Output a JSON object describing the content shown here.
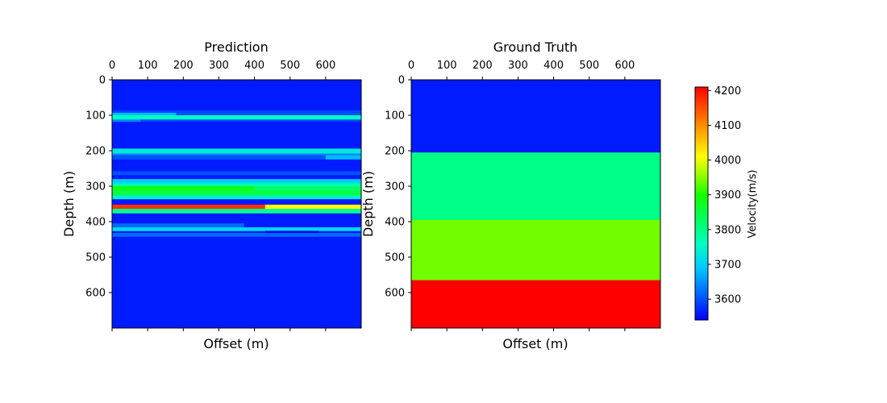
{
  "chart_data": [
    {
      "type": "heatmap",
      "title": "Prediction",
      "xlabel": "Offset (m)",
      "ylabel": "Depth (m)",
      "xlim": [
        0,
        700
      ],
      "ylim": [
        0,
        700
      ],
      "xticks": [
        0,
        100,
        200,
        300,
        400,
        500,
        600
      ],
      "yticks": [
        0,
        100,
        200,
        300,
        400,
        500,
        600
      ],
      "background_velocity": 3560,
      "layers": [
        {
          "depth": [
            86,
            93
          ],
          "x": [
            0,
            700
          ],
          "velocity": 3590
        },
        {
          "depth": [
            93,
            100
          ],
          "x": [
            0,
            180
          ],
          "velocity": 3680
        },
        {
          "depth": [
            93,
            100
          ],
          "x": [
            180,
            700
          ],
          "velocity": 3600
        },
        {
          "depth": [
            100,
            112
          ],
          "x": [
            0,
            700
          ],
          "velocity": 3760
        },
        {
          "depth": [
            112,
            118
          ],
          "x": [
            0,
            80
          ],
          "velocity": 3640
        },
        {
          "depth": [
            112,
            118
          ],
          "x": [
            80,
            700
          ],
          "velocity": 3590
        },
        {
          "depth": [
            194,
            208
          ],
          "x": [
            0,
            700
          ],
          "velocity": 3730
        },
        {
          "depth": [
            208,
            213
          ],
          "x": [
            0,
            700
          ],
          "velocity": 3640
        },
        {
          "depth": [
            213,
            224
          ],
          "x": [
            0,
            600
          ],
          "velocity": 3600
        },
        {
          "depth": [
            213,
            224
          ],
          "x": [
            600,
            700
          ],
          "velocity": 3680
        },
        {
          "depth": [
            258,
            268
          ],
          "x": [
            0,
            700
          ],
          "velocity": 3600
        },
        {
          "depth": [
            280,
            292
          ],
          "x": [
            0,
            700
          ],
          "velocity": 3700
        },
        {
          "depth": [
            292,
            300
          ],
          "x": [
            0,
            700
          ],
          "velocity": 3770
        },
        {
          "depth": [
            300,
            312
          ],
          "x": [
            0,
            400
          ],
          "velocity": 3880
        },
        {
          "depth": [
            300,
            312
          ],
          "x": [
            400,
            700
          ],
          "velocity": 3820
        },
        {
          "depth": [
            312,
            326
          ],
          "x": [
            0,
            700
          ],
          "velocity": 3850
        },
        {
          "depth": [
            326,
            336
          ],
          "x": [
            0,
            700
          ],
          "velocity": 3740
        },
        {
          "depth": [
            352,
            364
          ],
          "x": [
            0,
            430
          ],
          "velocity": 4170
        },
        {
          "depth": [
            352,
            364
          ],
          "x": [
            430,
            700
          ],
          "velocity": 4010
        },
        {
          "depth": [
            364,
            376
          ],
          "x": [
            0,
            700
          ],
          "velocity": 3790
        },
        {
          "depth": [
            405,
            416
          ],
          "x": [
            0,
            370
          ],
          "velocity": 3620
        },
        {
          "depth": [
            416,
            426
          ],
          "x": [
            0,
            700
          ],
          "velocity": 3710
        },
        {
          "depth": [
            426,
            432
          ],
          "x": [
            430,
            580
          ],
          "velocity": 3540
        },
        {
          "depth": [
            432,
            442
          ],
          "x": [
            0,
            700
          ],
          "velocity": 3620
        }
      ]
    },
    {
      "type": "heatmap",
      "title": "Ground Truth",
      "xlabel": "Offset (m)",
      "ylabel": "Depth (m)",
      "xlim": [
        0,
        700
      ],
      "ylim": [
        0,
        700
      ],
      "xticks": [
        0,
        100,
        200,
        300,
        400,
        500,
        600
      ],
      "yticks": [
        0,
        100,
        200,
        300,
        400,
        500,
        600
      ],
      "layers": [
        {
          "depth": [
            0,
            205
          ],
          "x": [
            0,
            700
          ],
          "velocity": 3560
        },
        {
          "depth": [
            205,
            395
          ],
          "x": [
            0,
            700
          ],
          "velocity": 3800
        },
        {
          "depth": [
            395,
            565
          ],
          "x": [
            0,
            700
          ],
          "velocity": 3940
        },
        {
          "depth": [
            565,
            700
          ],
          "x": [
            0,
            700
          ],
          "velocity": 4210
        }
      ]
    }
  ],
  "colorbar": {
    "label": "Velocity(m/s)",
    "vmin": 3540,
    "vmax": 4210,
    "ticks": [
      3600,
      3700,
      3800,
      3900,
      4000,
      4100,
      4200
    ],
    "colormap": "hsv",
    "stops": [
      {
        "v": 3540,
        "color": "#0000ff"
      },
      {
        "v": 3690,
        "color": "#00c8ff"
      },
      {
        "v": 3760,
        "color": "#00ffbe"
      },
      {
        "v": 3810,
        "color": "#00ff78"
      },
      {
        "v": 3900,
        "color": "#14ff00"
      },
      {
        "v": 3950,
        "color": "#88ff00"
      },
      {
        "v": 4010,
        "color": "#ffff00"
      },
      {
        "v": 4100,
        "color": "#ff8c00"
      },
      {
        "v": 4210,
        "color": "#ff0000"
      }
    ]
  }
}
